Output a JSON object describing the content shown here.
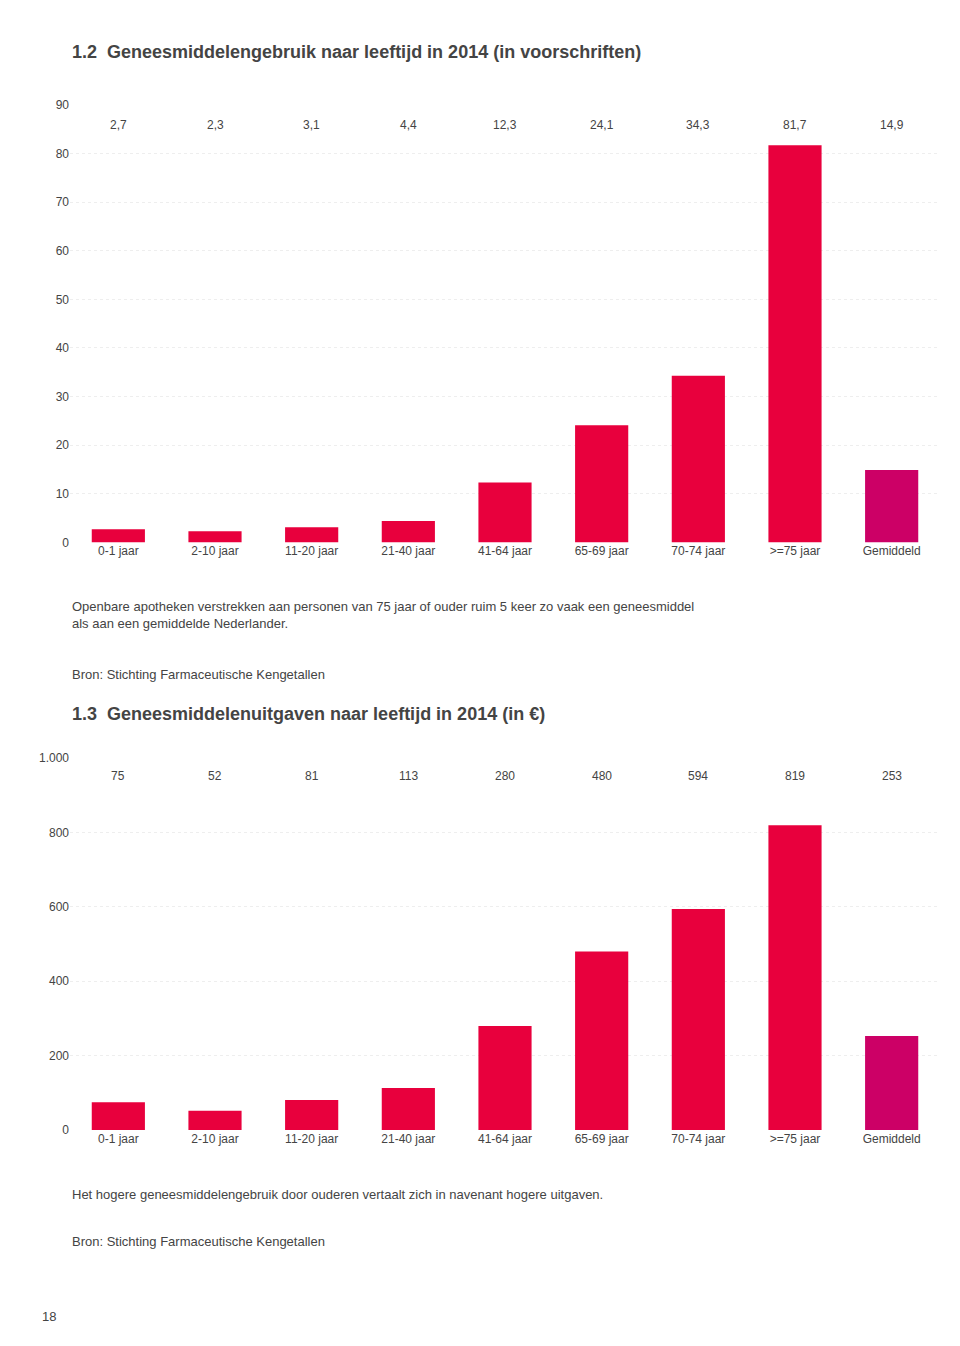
{
  "chart_data": [
    {
      "type": "bar",
      "title": "1.2  Geneesmiddelengebruik naar leeftijd in 2014 (in voorschriften)",
      "categories": [
        "0-1 jaar",
        "2-10 jaar",
        "11-20 jaar",
        "21-40 jaar",
        "41-64 jaar",
        "65-69 jaar",
        "70-74 jaar",
        ">=75 jaar",
        "Gemiddeld"
      ],
      "values": [
        2.7,
        2.3,
        3.1,
        4.4,
        12.3,
        24.1,
        34.3,
        81.7,
        14.9
      ],
      "value_labels": [
        "2,7",
        "2,3",
        "3,1",
        "4,4",
        "12,3",
        "24,1",
        "34,3",
        "81,7",
        "14,9"
      ],
      "data_labels": true,
      "colors": [
        "#e8003d",
        "#e8003d",
        "#e8003d",
        "#e8003d",
        "#e8003d",
        "#e8003d",
        "#e8003d",
        "#e8003d",
        "#cc0066"
      ],
      "ylim": [
        0,
        90
      ],
      "yticks": [
        0,
        10,
        20,
        30,
        40,
        50,
        60,
        70,
        80,
        90
      ],
      "grid": true,
      "caption": "Openbare apotheken verstrekken aan personen van 75 jaar of ouder ruim 5 keer zo vaak een geneesmiddel\nals aan een gemiddelde Nederlander.",
      "source": "Bron: Stichting Farmaceutische Kengetallen"
    },
    {
      "type": "bar",
      "title": "1.3  Geneesmiddelenuitgaven naar leeftijd in 2014 (in €)",
      "categories": [
        "0-1 jaar",
        "2-10 jaar",
        "11-20 jaar",
        "21-40 jaar",
        "41-64 jaar",
        "65-69 jaar",
        "70-74 jaar",
        ">=75 jaar",
        "Gemiddeld"
      ],
      "values": [
        75,
        52,
        81,
        113,
        280,
        480,
        594,
        819,
        253
      ],
      "data_labels": true,
      "colors": [
        "#e8003d",
        "#e8003d",
        "#e8003d",
        "#e8003d",
        "#e8003d",
        "#e8003d",
        "#e8003d",
        "#e8003d",
        "#cc0066"
      ],
      "ylim": [
        0,
        1000
      ],
      "yticks": [
        0,
        200,
        400,
        600,
        800,
        {
          "value": 1000,
          "label": "1.000"
        }
      ],
      "grid": true,
      "caption": "Het hogere geneesmiddelengebruik door ouderen vertaalt zich in navenant hogere uitgaven.",
      "source": "Bron: Stichting Farmaceutische Kengetallen"
    }
  ],
  "page_number": "18"
}
